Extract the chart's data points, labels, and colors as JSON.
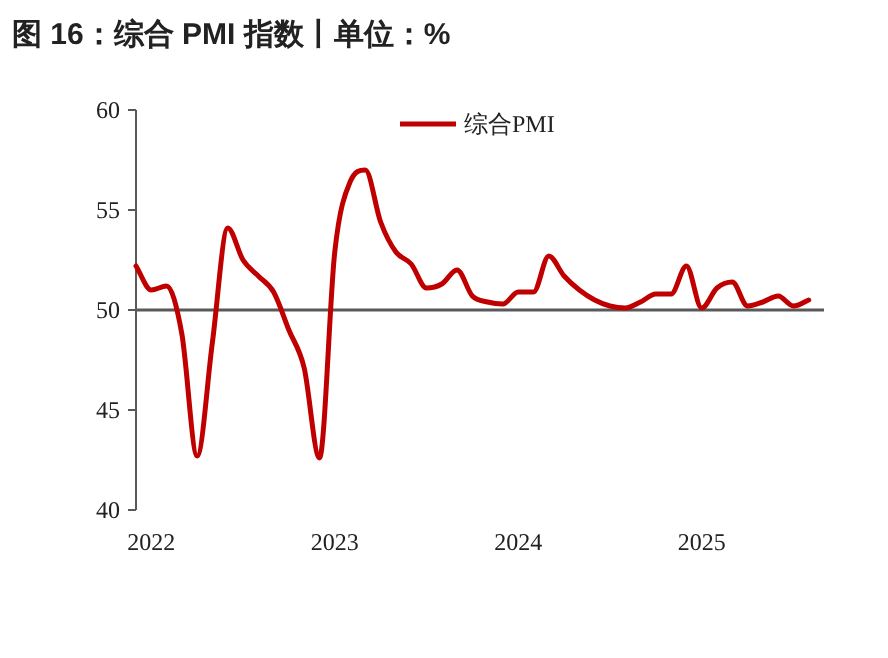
{
  "chart_data": {
    "type": "line",
    "title": "图 16：综合 PMI 指数丨单位：%",
    "x": [
      "2021-12",
      "2022-01",
      "2022-02",
      "2022-03",
      "2022-04",
      "2022-05",
      "2022-06",
      "2022-07",
      "2022-08",
      "2022-09",
      "2022-10",
      "2022-11",
      "2022-12",
      "2023-01",
      "2023-02",
      "2023-03",
      "2023-04",
      "2023-05",
      "2023-06",
      "2023-07",
      "2023-08",
      "2023-09",
      "2023-10",
      "2023-11",
      "2023-12",
      "2024-01",
      "2024-02",
      "2024-03",
      "2024-04",
      "2024-05",
      "2024-06",
      "2024-07",
      "2024-08",
      "2024-09",
      "2024-10",
      "2024-11",
      "2024-12",
      "2025-01",
      "2025-02",
      "2025-03",
      "2025-04",
      "2025-05",
      "2025-06",
      "2025-07",
      "2025-08"
    ],
    "series": [
      {
        "name": "综合PMI",
        "color": "#c00000",
        "values": [
          52.2,
          51.0,
          51.2,
          48.8,
          42.7,
          48.4,
          54.1,
          52.5,
          51.7,
          50.9,
          49.0,
          47.1,
          42.6,
          52.9,
          56.4,
          57.0,
          54.4,
          52.9,
          52.3,
          51.1,
          51.3,
          52.0,
          50.7,
          50.4,
          50.3,
          50.9,
          50.9,
          52.7,
          51.7,
          51.0,
          50.5,
          50.2,
          50.1,
          50.4,
          50.8,
          50.8,
          52.2,
          50.1,
          51.1,
          51.4,
          50.2,
          50.4,
          50.7,
          50.2,
          50.5
        ]
      }
    ],
    "xlim": [
      "2021-12",
      "2025-09"
    ],
    "xticks": [
      "2022",
      "2023",
      "2024",
      "2025"
    ],
    "ylim": [
      40,
      60
    ],
    "yticks": [
      40,
      45,
      50,
      55,
      60
    ],
    "ref_lines": [
      {
        "axis": "y",
        "value": 50,
        "color": "#595959"
      }
    ],
    "legend": "top"
  }
}
